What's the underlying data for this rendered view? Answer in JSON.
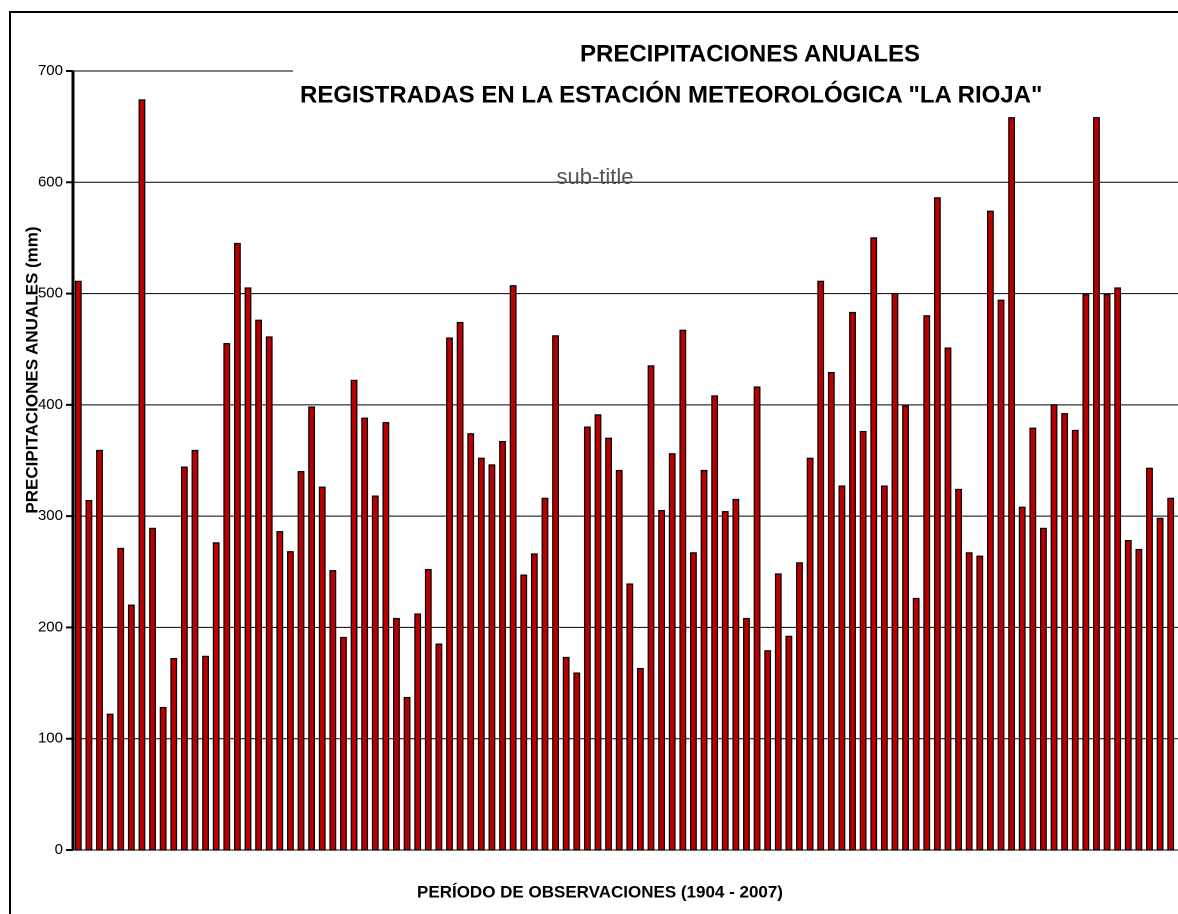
{
  "chart_data": {
    "type": "bar",
    "title": "PRECIPITACIONES ANUALES",
    "title2": "REGISTRADAS EN LA ESTACIÓN METEOROLÓGICA \"LA RIOJA\"",
    "subtitle": "sub-title",
    "x_label": "PERÍODO DE OBSERVACIONES  (1904 - 2007)",
    "y_label": "PRECIPITACIONES ANUALES  (mm)",
    "categories": [
      null,
      null,
      null,
      null,
      null,
      null,
      null,
      null,
      null,
      null,
      null,
      null,
      null,
      null,
      null,
      null,
      null,
      null,
      null,
      null,
      null,
      null,
      null,
      null,
      null,
      null,
      null,
      null,
      null,
      null,
      null,
      null,
      null,
      null,
      null,
      null,
      null,
      null,
      null,
      null,
      null,
      null,
      null,
      null,
      null,
      null,
      null,
      null,
      null,
      null,
      null,
      null,
      null,
      null,
      null,
      null,
      null,
      null,
      null,
      null,
      null,
      null,
      null,
      null,
      null,
      null,
      null,
      null,
      null,
      null,
      null,
      null,
      null,
      null,
      null,
      null,
      null,
      null,
      null,
      null,
      null,
      null,
      null,
      null,
      null,
      null,
      null,
      null,
      null,
      null,
      null,
      null,
      null,
      null,
      null,
      null,
      null,
      null,
      null,
      null,
      null,
      null,
      null,
      null
    ],
    "values": [
      511,
      314,
      359,
      122,
      271,
      220,
      674,
      289,
      128,
      172,
      344,
      359,
      174,
      276,
      455,
      545,
      505,
      476,
      461,
      286,
      268,
      340,
      398,
      326,
      251,
      191,
      422,
      388,
      318,
      384,
      208,
      137,
      212,
      252,
      185,
      460,
      474,
      374,
      352,
      346,
      367,
      507,
      247,
      266,
      316,
      462,
      173,
      159,
      380,
      391,
      370,
      341,
      239,
      163,
      435,
      305,
      356,
      467,
      267,
      341,
      408,
      304,
      315,
      208,
      416,
      179,
      248,
      192,
      258,
      352,
      511,
      429,
      327,
      483,
      376,
      550,
      327,
      500,
      399,
      226,
      480,
      586,
      451,
      324,
      267,
      264,
      574,
      494,
      658,
      308,
      379,
      289,
      400,
      392,
      377,
      499,
      658,
      499,
      505,
      278,
      270,
      343,
      298,
      316
    ],
    "color": "#b80000",
    "ylim": [
      0,
      700
    ],
    "yticks": [
      0,
      100,
      200,
      300,
      400,
      500,
      600,
      700
    ],
    "grid": true
  }
}
